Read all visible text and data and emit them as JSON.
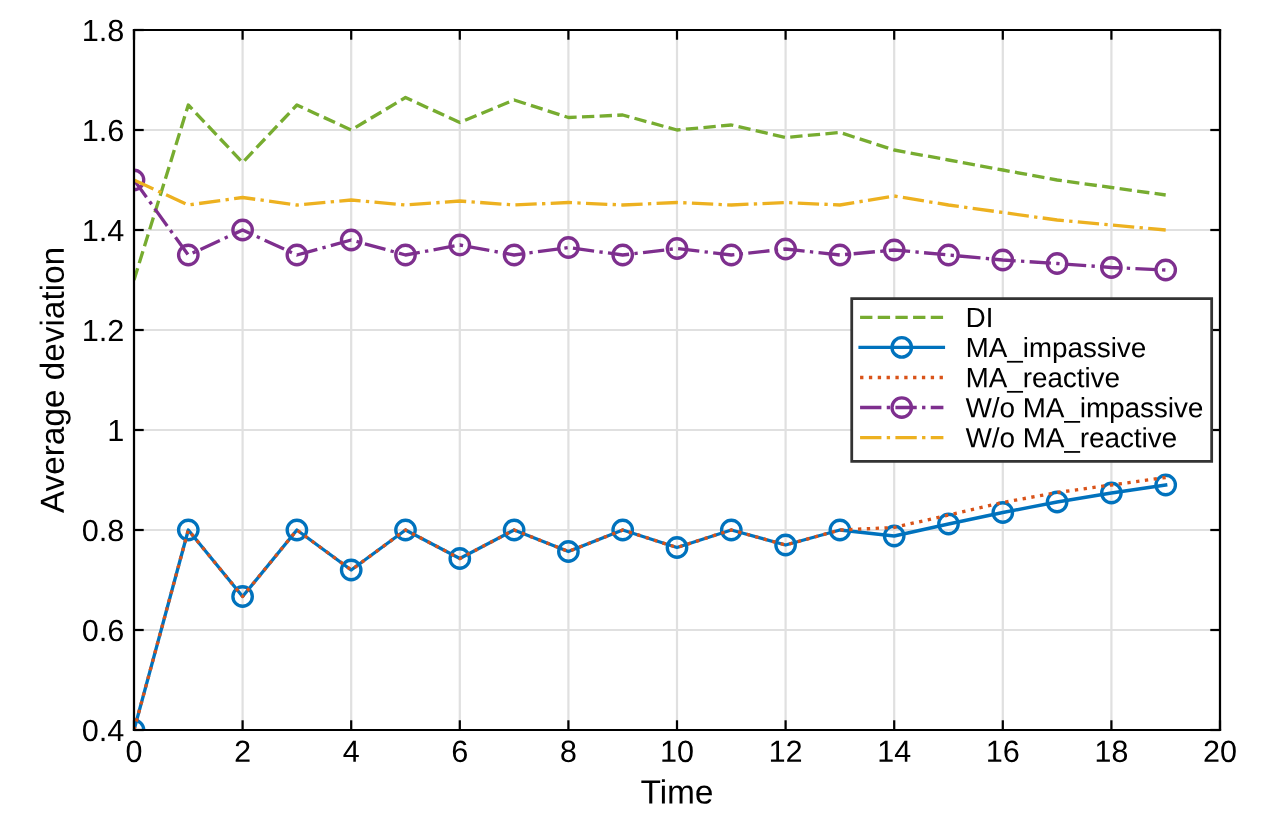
{
  "chart_data": {
    "type": "line",
    "xlabel": "Time",
    "ylabel": "Average deviation",
    "x": [
      0,
      1,
      2,
      3,
      4,
      5,
      6,
      7,
      8,
      9,
      10,
      11,
      12,
      13,
      14,
      15,
      16,
      17,
      18,
      19
    ],
    "series": [
      {
        "name": "DI",
        "color": "#77ac30",
        "line_style": "dashed",
        "marker": "none",
        "values": [
          1.3,
          1.65,
          1.535,
          1.65,
          1.6,
          1.665,
          1.615,
          1.66,
          1.625,
          1.63,
          1.6,
          1.61,
          1.585,
          1.595,
          1.56,
          1.54,
          1.52,
          1.5,
          1.485,
          1.47
        ]
      },
      {
        "name": "MA_impassive",
        "color": "#0072bd",
        "line_style": "solid",
        "marker": "circle",
        "values": [
          0.4,
          0.8,
          0.667,
          0.8,
          0.72,
          0.8,
          0.743,
          0.8,
          0.757,
          0.8,
          0.765,
          0.8,
          0.77,
          0.8,
          0.788,
          0.812,
          0.835,
          0.856,
          0.874,
          0.89
        ]
      },
      {
        "name": "MA_reactive",
        "color": "#d95319",
        "line_style": "dotted",
        "marker": "none",
        "values": [
          0.4,
          0.8,
          0.667,
          0.8,
          0.72,
          0.8,
          0.743,
          0.8,
          0.757,
          0.8,
          0.765,
          0.8,
          0.77,
          0.8,
          0.805,
          0.83,
          0.855,
          0.875,
          0.89,
          0.905
        ]
      },
      {
        "name": "W/o MA_impassive",
        "color": "#7e2f8e",
        "line_style": "dashdot",
        "marker": "circle",
        "values": [
          1.5,
          1.35,
          1.4,
          1.35,
          1.38,
          1.35,
          1.37,
          1.35,
          1.365,
          1.35,
          1.363,
          1.35,
          1.362,
          1.35,
          1.36,
          1.35,
          1.34,
          1.333,
          1.325,
          1.32
        ]
      },
      {
        "name": "W/o MA_reactive",
        "color": "#edb120",
        "line_style": "dashdot",
        "marker": "none",
        "values": [
          1.5,
          1.45,
          1.465,
          1.45,
          1.46,
          1.45,
          1.458,
          1.45,
          1.455,
          1.45,
          1.455,
          1.45,
          1.455,
          1.45,
          1.468,
          1.45,
          1.435,
          1.42,
          1.41,
          1.4
        ]
      }
    ],
    "xlim": [
      0,
      20
    ],
    "xticks": [
      0,
      2,
      4,
      6,
      8,
      10,
      12,
      14,
      16,
      18,
      20
    ],
    "ylim": [
      0.4,
      1.8
    ],
    "yticks": [
      0.4,
      0.6,
      0.8,
      1,
      1.2,
      1.4,
      1.6,
      1.8
    ],
    "grid": true,
    "legend": "center right"
  }
}
